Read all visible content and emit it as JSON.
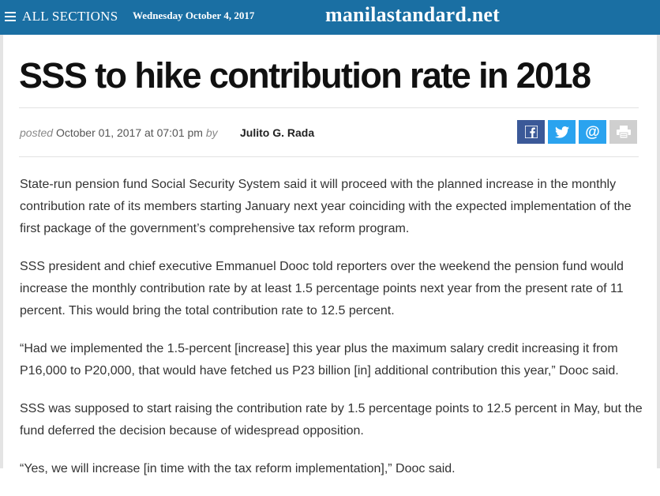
{
  "header": {
    "menu_label": "ALL SECTIONS",
    "date": "Wednesday October 4, 2017",
    "brand": "manilastandard.net"
  },
  "article": {
    "title": "SSS to hike contribution rate in 2018",
    "posted_label": "posted",
    "posted_datetime": "October 01, 2017 at 07:01 pm",
    "by_label": "by",
    "author": "Julito G. Rada",
    "paragraphs": [
      "State-run pension fund Social Security System said it will proceed with the planned increase in the monthly contribution rate of its members starting January next year coinciding with the expected implementation of the first package of the government’s comprehensive tax reform program.",
      "SSS president and chief executive Emmanuel Dooc told reporters over the weekend the pension fund would increase the monthly contribution rate by at least 1.5 percentage points next year from the present rate of 11 percent.  This would bring the total contribution rate to 12.5 percent.",
      "“Had we implemented the 1.5-percent [increase] this year plus the maximum salary credit increasing it from P16,000 to P20,000, that would have fetched us P23 billion [in] additional contribution this year,” Dooc said.",
      "SSS was supposed to start raising the contribution rate by 1.5 percentage points to 12.5 percent in May, but the fund deferred the decision because of widespread opposition.",
      "“Yes, we will increase [in time with the tax reform implementation],” Dooc said."
    ]
  },
  "share": {
    "facebook": "facebook-icon",
    "twitter": "twitter-icon",
    "email": "email-icon",
    "print": "print-icon"
  },
  "colors": {
    "topbar": "#1a6fa3",
    "facebook": "#3b5998",
    "twitter": "#2aa3ef",
    "print": "#cfcfcf"
  }
}
